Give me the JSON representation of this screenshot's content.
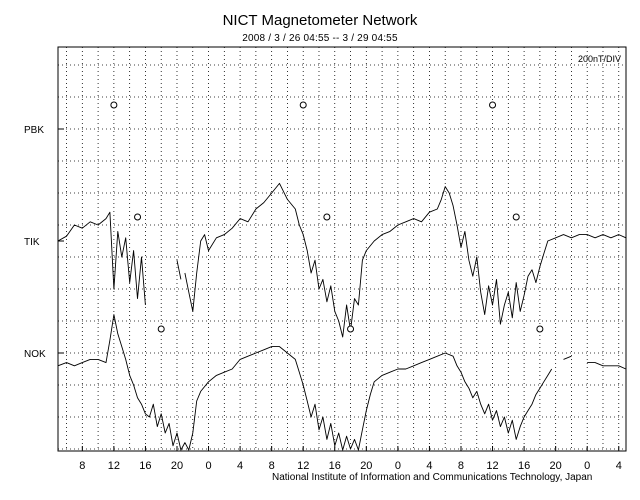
{
  "chart_data": {
    "type": "line",
    "title": "NICT Magnetometer Network",
    "subtitle": "2008 / 3 / 26   04:55 --  3 / 29   04:55",
    "scale_label": "200nT/DIV",
    "footer": "National Institute of Information and Communications Technology, Japan",
    "x_tick_labels": [
      "8",
      "12",
      "16",
      "20",
      "0",
      "4",
      "8",
      "12",
      "16",
      "20",
      "0",
      "4",
      "8",
      "12",
      "16",
      "20",
      "0",
      "4"
    ],
    "x_range_hours": [
      4.917,
      76.917
    ],
    "grid": true,
    "stations": [
      {
        "name": "PBK",
        "noon_markers_hours": [
          12.0,
          36.0,
          60.0
        ],
        "points": []
      },
      {
        "name": "TIK",
        "noon_markers_hours": [
          15.0,
          39.0,
          63.0
        ],
        "points": [
          [
            4.9,
            0.0
          ],
          [
            6,
            0.15
          ],
          [
            7,
            0.5
          ],
          [
            8,
            0.4
          ],
          [
            9,
            0.6
          ],
          [
            10,
            0.5
          ],
          [
            11,
            0.7
          ],
          [
            11.5,
            0.9
          ],
          [
            12,
            -1.5
          ],
          [
            12.5,
            0.3
          ],
          [
            13,
            -0.5
          ],
          [
            13.5,
            0.1
          ],
          [
            14,
            -1.3
          ],
          [
            14.5,
            -0.3
          ],
          [
            15,
            -1.8
          ],
          [
            15.5,
            -0.5
          ],
          [
            16,
            -2.0
          ],
          [
            null,
            null
          ],
          [
            20,
            -0.6
          ],
          [
            20.5,
            -1.2
          ],
          [
            null,
            null
          ],
          [
            21,
            -1.0
          ],
          [
            21.5,
            -1.6
          ],
          [
            22,
            -2.2
          ],
          [
            22.5,
            -1.0
          ],
          [
            23,
            0.0
          ],
          [
            23.5,
            0.2
          ],
          [
            24,
            -0.3
          ],
          [
            25,
            0.1
          ],
          [
            26,
            0.2
          ],
          [
            27,
            0.4
          ],
          [
            28,
            0.7
          ],
          [
            29,
            0.6
          ],
          [
            30,
            1.0
          ],
          [
            31,
            1.2
          ],
          [
            32,
            1.5
          ],
          [
            33,
            1.8
          ],
          [
            34,
            1.3
          ],
          [
            35,
            1.0
          ],
          [
            35.5,
            0.5
          ],
          [
            36,
            0.2
          ],
          [
            36.5,
            -0.3
          ],
          [
            37,
            -1.0
          ],
          [
            37.5,
            -0.6
          ],
          [
            38,
            -1.5
          ],
          [
            38.5,
            -1.2
          ],
          [
            39,
            -1.9
          ],
          [
            39.5,
            -1.4
          ],
          [
            40,
            -2.2
          ],
          [
            40.5,
            -2.5
          ],
          [
            41,
            -3.0
          ],
          [
            41.5,
            -2.0
          ],
          [
            42,
            -2.8
          ],
          [
            42.5,
            -1.8
          ],
          [
            43,
            -2.0
          ],
          [
            43.5,
            -0.6
          ],
          [
            44,
            -0.3
          ],
          [
            45,
            0.0
          ],
          [
            46,
            0.2
          ],
          [
            47,
            0.3
          ],
          [
            48,
            0.5
          ],
          [
            49,
            0.6
          ],
          [
            50,
            0.7
          ],
          [
            51,
            0.6
          ],
          [
            52,
            0.9
          ],
          [
            53,
            1.0
          ],
          [
            53.5,
            1.3
          ],
          [
            54,
            1.7
          ],
          [
            54.5,
            1.5
          ],
          [
            55,
            1.1
          ],
          [
            55.5,
            0.5
          ],
          [
            56,
            -0.2
          ],
          [
            56.5,
            0.3
          ],
          [
            57,
            -0.6
          ],
          [
            57.5,
            -1.1
          ],
          [
            58,
            -0.5
          ],
          [
            58.5,
            -1.6
          ],
          [
            59,
            -2.3
          ],
          [
            59.5,
            -1.4
          ],
          [
            60,
            -2.0
          ],
          [
            60.5,
            -1.2
          ],
          [
            61,
            -2.6
          ],
          [
            61.5,
            -2.0
          ],
          [
            62,
            -1.6
          ],
          [
            62.5,
            -2.4
          ],
          [
            63,
            -1.3
          ],
          [
            63.5,
            -2.2
          ],
          [
            64,
            -1.7
          ],
          [
            64.5,
            -1.1
          ],
          [
            65,
            -0.9
          ],
          [
            65.5,
            -1.3
          ],
          [
            66,
            -0.8
          ],
          [
            66.5,
            -0.4
          ],
          [
            67,
            0.0
          ],
          [
            68,
            0.1
          ],
          [
            69,
            0.2
          ],
          [
            70,
            0.1
          ],
          [
            71,
            0.2
          ],
          [
            72,
            0.2
          ],
          [
            73,
            0.1
          ],
          [
            74,
            0.2
          ],
          [
            75,
            0.1
          ],
          [
            76,
            0.2
          ],
          [
            76.9,
            0.1
          ]
        ]
      },
      {
        "name": "NOK",
        "noon_markers_hours": [
          18.0,
          42.0,
          66.0
        ],
        "points": [
          [
            4.9,
            -0.4
          ],
          [
            6,
            -0.3
          ],
          [
            7,
            -0.4
          ],
          [
            8,
            -0.3
          ],
          [
            9,
            -0.2
          ],
          [
            10,
            -0.2
          ],
          [
            11,
            -0.3
          ],
          [
            11.5,
            0.4
          ],
          [
            12,
            1.2
          ],
          [
            12.5,
            0.6
          ],
          [
            13,
            0.2
          ],
          [
            13.5,
            -0.2
          ],
          [
            14,
            -0.7
          ],
          [
            14.5,
            -1.0
          ],
          [
            15,
            -1.4
          ],
          [
            15.5,
            -1.6
          ],
          [
            16,
            -1.9
          ],
          [
            16.5,
            -2.0
          ],
          [
            17,
            -1.6
          ],
          [
            17.5,
            -2.3
          ],
          [
            18,
            -1.9
          ],
          [
            18.5,
            -2.5
          ],
          [
            19,
            -2.2
          ],
          [
            19.5,
            -2.9
          ],
          [
            20,
            -2.5
          ],
          [
            20.5,
            -3.2
          ],
          [
            21,
            -2.8
          ],
          [
            21.5,
            -3.1
          ],
          [
            22,
            -2.5
          ],
          [
            22.5,
            -1.5
          ],
          [
            23,
            -1.2
          ],
          [
            24,
            -0.9
          ],
          [
            25,
            -0.7
          ],
          [
            26,
            -0.6
          ],
          [
            27,
            -0.5
          ],
          [
            28,
            -0.2
          ],
          [
            29,
            -0.1
          ],
          [
            30,
            0.0
          ],
          [
            31,
            0.1
          ],
          [
            32,
            0.2
          ],
          [
            33,
            0.2
          ],
          [
            34,
            0.0
          ],
          [
            35,
            -0.2
          ],
          [
            35.5,
            -0.6
          ],
          [
            36,
            -1.0
          ],
          [
            36.5,
            -1.5
          ],
          [
            37,
            -2.0
          ],
          [
            37.5,
            -1.6
          ],
          [
            38,
            -2.4
          ],
          [
            38.5,
            -2.0
          ],
          [
            39,
            -2.7
          ],
          [
            39.5,
            -2.2
          ],
          [
            40,
            -2.9
          ],
          [
            40.5,
            -2.5
          ],
          [
            41,
            -3.1
          ],
          [
            41.5,
            -2.6
          ],
          [
            42,
            -3.0
          ],
          [
            42.5,
            -2.7
          ],
          [
            43,
            -3.1
          ],
          [
            43.5,
            -2.4
          ],
          [
            44,
            -1.8
          ],
          [
            44.5,
            -1.3
          ],
          [
            45,
            -0.9
          ],
          [
            46,
            -0.7
          ],
          [
            47,
            -0.6
          ],
          [
            48,
            -0.5
          ],
          [
            49,
            -0.5
          ],
          [
            50,
            -0.4
          ],
          [
            51,
            -0.3
          ],
          [
            52,
            -0.2
          ],
          [
            53,
            -0.1
          ],
          [
            54,
            0.0
          ],
          [
            55,
            -0.1
          ],
          [
            55.5,
            -0.4
          ],
          [
            56,
            -0.6
          ],
          [
            56.5,
            -0.9
          ],
          [
            57,
            -1.1
          ],
          [
            57.5,
            -1.4
          ],
          [
            58,
            -1.2
          ],
          [
            58.5,
            -1.6
          ],
          [
            59,
            -1.9
          ],
          [
            59.5,
            -1.6
          ],
          [
            60,
            -2.1
          ],
          [
            60.5,
            -1.8
          ],
          [
            61,
            -2.3
          ],
          [
            61.5,
            -2.0
          ],
          [
            62,
            -2.5
          ],
          [
            62.5,
            -2.1
          ],
          [
            63,
            -2.7
          ],
          [
            63.5,
            -2.3
          ],
          [
            64,
            -2.0
          ],
          [
            64.5,
            -1.8
          ],
          [
            65,
            -1.6
          ],
          [
            65.5,
            -1.3
          ],
          [
            66,
            -1.1
          ],
          [
            66.5,
            -0.9
          ],
          [
            67,
            -0.7
          ],
          [
            67.5,
            -0.5
          ],
          [
            null,
            null
          ],
          [
            69,
            -0.2
          ],
          [
            70,
            -0.1
          ],
          [
            null,
            null
          ],
          [
            72,
            -0.3
          ],
          [
            73,
            -0.3
          ],
          [
            74,
            -0.4
          ],
          [
            75,
            -0.4
          ],
          [
            76,
            -0.4
          ],
          [
            76.9,
            -0.5
          ]
        ]
      }
    ]
  }
}
